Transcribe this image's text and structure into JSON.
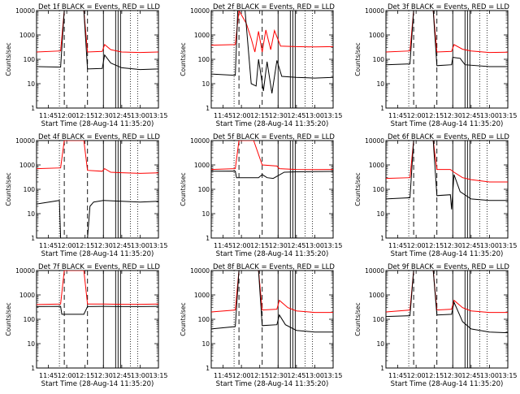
{
  "chart_data": {
    "type": "line",
    "grid": false,
    "shared": {
      "ylabel": "Counts/sec",
      "xlabel": "Start Time (28-Aug-14 11:35:20)",
      "x_range": [
        "11:35:20",
        "13:15"
      ],
      "x_ticks": [
        "11:45",
        "12:00",
        "12:15",
        "12:30",
        "12:45",
        "13:00",
        "13:15"
      ],
      "y_scale": "log",
      "y_range": [
        1,
        10000
      ],
      "y_ticks": [
        "1",
        "10",
        "100",
        "1000",
        "10000"
      ],
      "series_colors": {
        "events": "#000000",
        "lld": "#ff0000"
      }
    },
    "panels": [
      {
        "title": "Det 1f BLACK = Events, RED = LLD",
        "events_pts": [
          [
            "11:35:20",
            50
          ],
          [
            "11:55",
            48
          ],
          [
            "11:58",
            10000
          ],
          [
            "12:14",
            10000
          ],
          [
            "12:17",
            40
          ],
          [
            "12:29",
            42
          ],
          [
            "12:31",
            150
          ],
          [
            "12:36",
            70
          ],
          [
            "12:45",
            45
          ],
          [
            "13:00",
            38
          ],
          [
            "13:15",
            40
          ]
        ],
        "lld_pts": [
          [
            "11:35:20",
            200
          ],
          [
            "11:55",
            220
          ],
          [
            "11:58",
            10000
          ],
          [
            "12:14",
            10000
          ],
          [
            "12:17",
            200
          ],
          [
            "12:29",
            210
          ],
          [
            "12:31",
            400
          ],
          [
            "12:36",
            250
          ],
          [
            "12:45",
            200
          ],
          [
            "13:00",
            190
          ],
          [
            "13:15",
            200
          ]
        ]
      },
      {
        "title": "Det 2f BLACK = Events, RED = LLD",
        "events_pts": [
          [
            "11:35:20",
            25
          ],
          [
            "11:55",
            22
          ],
          [
            "11:57",
            10000
          ],
          [
            "12:03",
            10000
          ],
          [
            "12:08",
            10
          ],
          [
            "12:12",
            8
          ],
          [
            "12:14",
            100
          ],
          [
            "12:18",
            5
          ],
          [
            "12:21",
            80
          ],
          [
            "12:25",
            4
          ],
          [
            "12:29",
            90
          ],
          [
            "12:33",
            20
          ],
          [
            "12:45",
            18
          ],
          [
            "13:00",
            17
          ],
          [
            "13:15",
            18
          ]
        ],
        "lld_pts": [
          [
            "11:35:20",
            380
          ],
          [
            "11:55",
            400
          ],
          [
            "11:58",
            10000
          ],
          [
            "12:04",
            3000
          ],
          [
            "12:08",
            700
          ],
          [
            "12:11",
            200
          ],
          [
            "12:14",
            1400
          ],
          [
            "12:17",
            200
          ],
          [
            "12:20",
            1600
          ],
          [
            "12:24",
            250
          ],
          [
            "12:27",
            1500
          ],
          [
            "12:32",
            350
          ],
          [
            "12:45",
            330
          ],
          [
            "13:00",
            320
          ],
          [
            "13:15",
            330
          ]
        ]
      },
      {
        "title": "Det 3f BLACK = Events, RED = LLD",
        "events_pts": [
          [
            "11:35:20",
            60
          ],
          [
            "11:55",
            65
          ],
          [
            "11:58",
            10000
          ],
          [
            "12:14",
            10000
          ],
          [
            "12:17",
            55
          ],
          [
            "12:29",
            60
          ],
          [
            "12:30",
            120
          ],
          [
            "12:36",
            110
          ],
          [
            "12:40",
            60
          ],
          [
            "13:00",
            50
          ],
          [
            "13:15",
            50
          ]
        ],
        "lld_pts": [
          [
            "11:35:20",
            200
          ],
          [
            "11:55",
            220
          ],
          [
            "11:58",
            10000
          ],
          [
            "12:14",
            10000
          ],
          [
            "12:17",
            200
          ],
          [
            "12:29",
            210
          ],
          [
            "12:31",
            400
          ],
          [
            "12:38",
            260
          ],
          [
            "12:45",
            220
          ],
          [
            "13:00",
            190
          ],
          [
            "13:15",
            195
          ]
        ]
      },
      {
        "title": "Det 4f BLACK = Events, RED = LLD",
        "events_pts": [
          [
            "11:35:20",
            25
          ],
          [
            "11:54",
            35
          ],
          [
            "11:55",
            1
          ],
          [
            "12:17",
            1
          ],
          [
            "12:19",
            20
          ],
          [
            "12:22",
            30
          ],
          [
            "12:30",
            35
          ],
          [
            "12:45",
            32
          ],
          [
            "13:00",
            30
          ],
          [
            "13:15",
            32
          ]
        ],
        "lld_pts": [
          [
            "11:35:20",
            700
          ],
          [
            "11:55",
            750
          ],
          [
            "11:58",
            10000
          ],
          [
            "12:14",
            10000
          ],
          [
            "12:17",
            600
          ],
          [
            "12:29",
            550
          ],
          [
            "12:31",
            700
          ],
          [
            "12:36",
            500
          ],
          [
            "12:45",
            480
          ],
          [
            "13:00",
            450
          ],
          [
            "13:15",
            470
          ]
        ]
      },
      {
        "title": "Det 5f BLACK = Events, RED = LLD",
        "events_pts": [
          [
            "11:35:20",
            550
          ],
          [
            "11:55",
            560
          ],
          [
            "11:56",
            300
          ],
          [
            "12:14",
            300
          ],
          [
            "12:17",
            400
          ],
          [
            "12:21",
            300
          ],
          [
            "12:26",
            280
          ],
          [
            "12:35",
            500
          ],
          [
            "12:45",
            520
          ],
          [
            "13:00",
            530
          ],
          [
            "13:15",
            540
          ]
        ],
        "lld_pts": [
          [
            "11:35:20",
            650
          ],
          [
            "11:55",
            700
          ],
          [
            "11:58",
            10000
          ],
          [
            "12:10",
            10000
          ],
          [
            "12:17",
            1000
          ],
          [
            "12:29",
            900
          ],
          [
            "12:31",
            700
          ],
          [
            "12:45",
            650
          ],
          [
            "13:00",
            640
          ],
          [
            "13:15",
            650
          ]
        ]
      },
      {
        "title": "Det 6f BLACK = Events, RED = LLD",
        "events_pts": [
          [
            "11:35:20",
            40
          ],
          [
            "11:55",
            45
          ],
          [
            "11:58",
            10000
          ],
          [
            "12:14",
            10000
          ],
          [
            "12:17",
            55
          ],
          [
            "12:28",
            60
          ],
          [
            "12:29",
            15
          ],
          [
            "12:31",
            400
          ],
          [
            "12:36",
            80
          ],
          [
            "12:45",
            40
          ],
          [
            "13:00",
            35
          ],
          [
            "13:15",
            35
          ]
        ],
        "lld_pts": [
          [
            "11:35:20",
            280
          ],
          [
            "11:55",
            300
          ],
          [
            "11:58",
            10000
          ],
          [
            "12:14",
            10000
          ],
          [
            "12:17",
            650
          ],
          [
            "12:28",
            650
          ],
          [
            "12:31",
            500
          ],
          [
            "12:38",
            300
          ],
          [
            "12:45",
            250
          ],
          [
            "13:00",
            200
          ],
          [
            "13:15",
            200
          ]
        ]
      },
      {
        "title": "Det 7f BLACK = Events, RED = LLD",
        "events_pts": [
          [
            "11:35:20",
            330
          ],
          [
            "11:55",
            340
          ],
          [
            "11:56",
            160
          ],
          [
            "12:14",
            160
          ],
          [
            "12:17",
            330
          ],
          [
            "12:30",
            340
          ],
          [
            "12:45",
            330
          ],
          [
            "13:00",
            330
          ],
          [
            "13:15",
            340
          ]
        ],
        "lld_pts": [
          [
            "11:35:20",
            400
          ],
          [
            "11:55",
            420
          ],
          [
            "11:58",
            10000
          ],
          [
            "12:14",
            10000
          ],
          [
            "12:17",
            420
          ],
          [
            "12:30",
            420
          ],
          [
            "12:45",
            410
          ],
          [
            "13:00",
            410
          ],
          [
            "13:15",
            420
          ]
        ]
      },
      {
        "title": "Det 8f BLACK = Events, RED = LLD",
        "events_pts": [
          [
            "11:35:20",
            40
          ],
          [
            "11:55",
            50
          ],
          [
            "11:58",
            10000
          ],
          [
            "12:14",
            10000
          ],
          [
            "12:17",
            55
          ],
          [
            "12:29",
            60
          ],
          [
            "12:31",
            150
          ],
          [
            "12:36",
            60
          ],
          [
            "12:45",
            35
          ],
          [
            "13:00",
            30
          ],
          [
            "13:15",
            30
          ]
        ],
        "lld_pts": [
          [
            "11:35:20",
            200
          ],
          [
            "11:55",
            240
          ],
          [
            "11:58",
            10000
          ],
          [
            "12:14",
            10000
          ],
          [
            "12:17",
            240
          ],
          [
            "12:29",
            260
          ],
          [
            "12:31",
            600
          ],
          [
            "12:38",
            300
          ],
          [
            "12:45",
            220
          ],
          [
            "13:00",
            190
          ],
          [
            "13:15",
            190
          ]
        ]
      },
      {
        "title": "Det 9f BLACK = Events, RED = LLD",
        "events_pts": [
          [
            "11:35:20",
            130
          ],
          [
            "11:55",
            140
          ],
          [
            "11:58",
            10000
          ],
          [
            "12:14",
            10000
          ],
          [
            "12:17",
            150
          ],
          [
            "12:29",
            160
          ],
          [
            "12:31",
            500
          ],
          [
            "12:38",
            80
          ],
          [
            "12:45",
            40
          ],
          [
            "13:00",
            30
          ],
          [
            "13:15",
            28
          ]
        ],
        "lld_pts": [
          [
            "11:35:20",
            200
          ],
          [
            "11:55",
            240
          ],
          [
            "11:58",
            10000
          ],
          [
            "12:14",
            10000
          ],
          [
            "12:17",
            240
          ],
          [
            "12:29",
            260
          ],
          [
            "12:31",
            600
          ],
          [
            "12:38",
            300
          ],
          [
            "12:45",
            220
          ],
          [
            "13:00",
            190
          ],
          [
            "13:15",
            190
          ]
        ]
      }
    ]
  }
}
